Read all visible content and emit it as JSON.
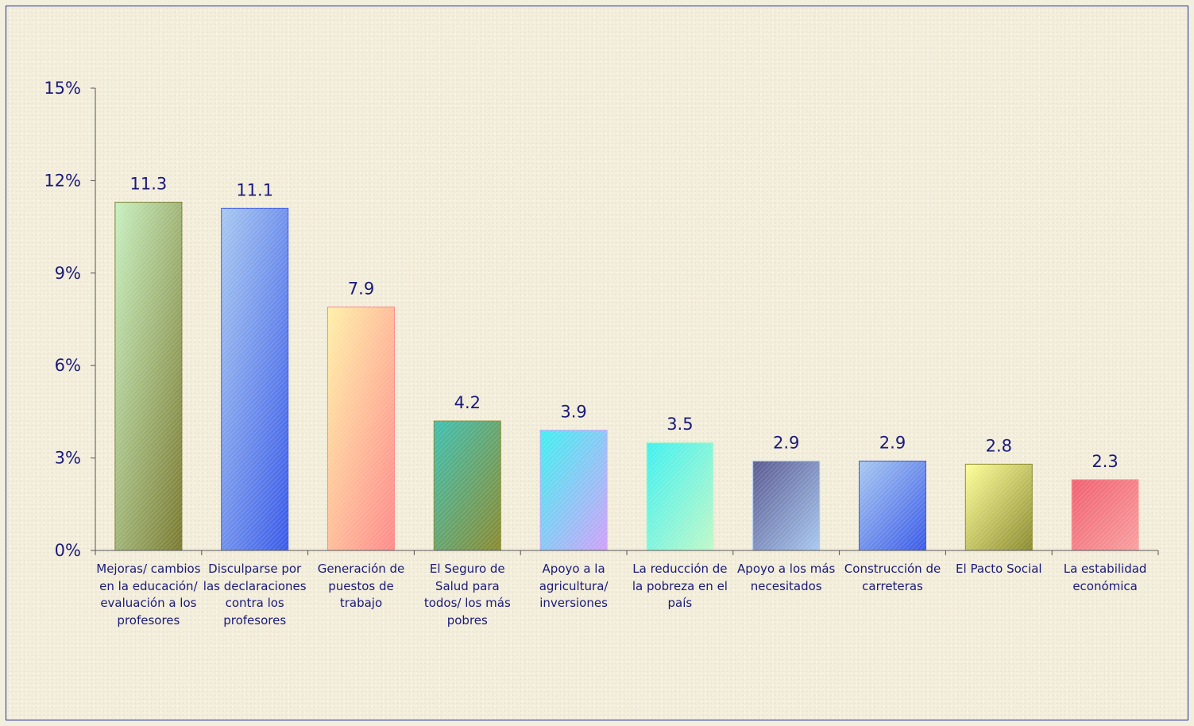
{
  "chart_data": {
    "type": "bar",
    "categories": [
      "Mejoras/ cambios en la educación/ evaluación a los profesores",
      "Disculparse por las declaraciones contra los profesores",
      "Generación de puestos de trabajo",
      "El Seguro de Salud para todos/ los más pobres",
      "Apoyo a la agricultura/ inversiones",
      "La reducción de la pobreza en el país",
      "Apoyo a los más necesitados",
      "Construcción de carreteras",
      "El Pacto Social",
      "La estabilidad económica"
    ],
    "values": [
      11.3,
      11.1,
      7.9,
      4.2,
      3.9,
      3.5,
      2.9,
      2.9,
      2.8,
      2.3
    ],
    "data_labels": [
      "11.3",
      "11.1",
      "7.9",
      "4.2",
      "3.9",
      "3.5",
      "2.9",
      "2.9",
      "2.8",
      "2.3"
    ],
    "y_ticks": [
      "0%",
      "3%",
      "6%",
      "9%",
      "12%",
      "15%"
    ],
    "ylim": [
      0,
      15
    ],
    "grid": false,
    "legend": "none",
    "title": "",
    "xlabel": "",
    "ylabel": "",
    "colors": [
      [
        "#c8f0c0",
        "#7a7a30"
      ],
      [
        "#a8c8f0",
        "#3a5ae8"
      ],
      [
        "#fff0a8",
        "#ff8a8a"
      ],
      [
        "#40c0b0",
        "#8a8a30"
      ],
      [
        "#40f0f0",
        "#d0a0f8"
      ],
      [
        "#40f0f0",
        "#c0f8c8"
      ],
      [
        "#5a5a90",
        "#a8c8f0"
      ],
      [
        "#a8c8f0",
        "#3a5ae8"
      ],
      [
        "#ffff98",
        "#8a8a30"
      ],
      [
        "#f06070",
        "#f8a0a0"
      ]
    ],
    "axis_color": "#555555",
    "label_color": "#1a1a7a"
  }
}
